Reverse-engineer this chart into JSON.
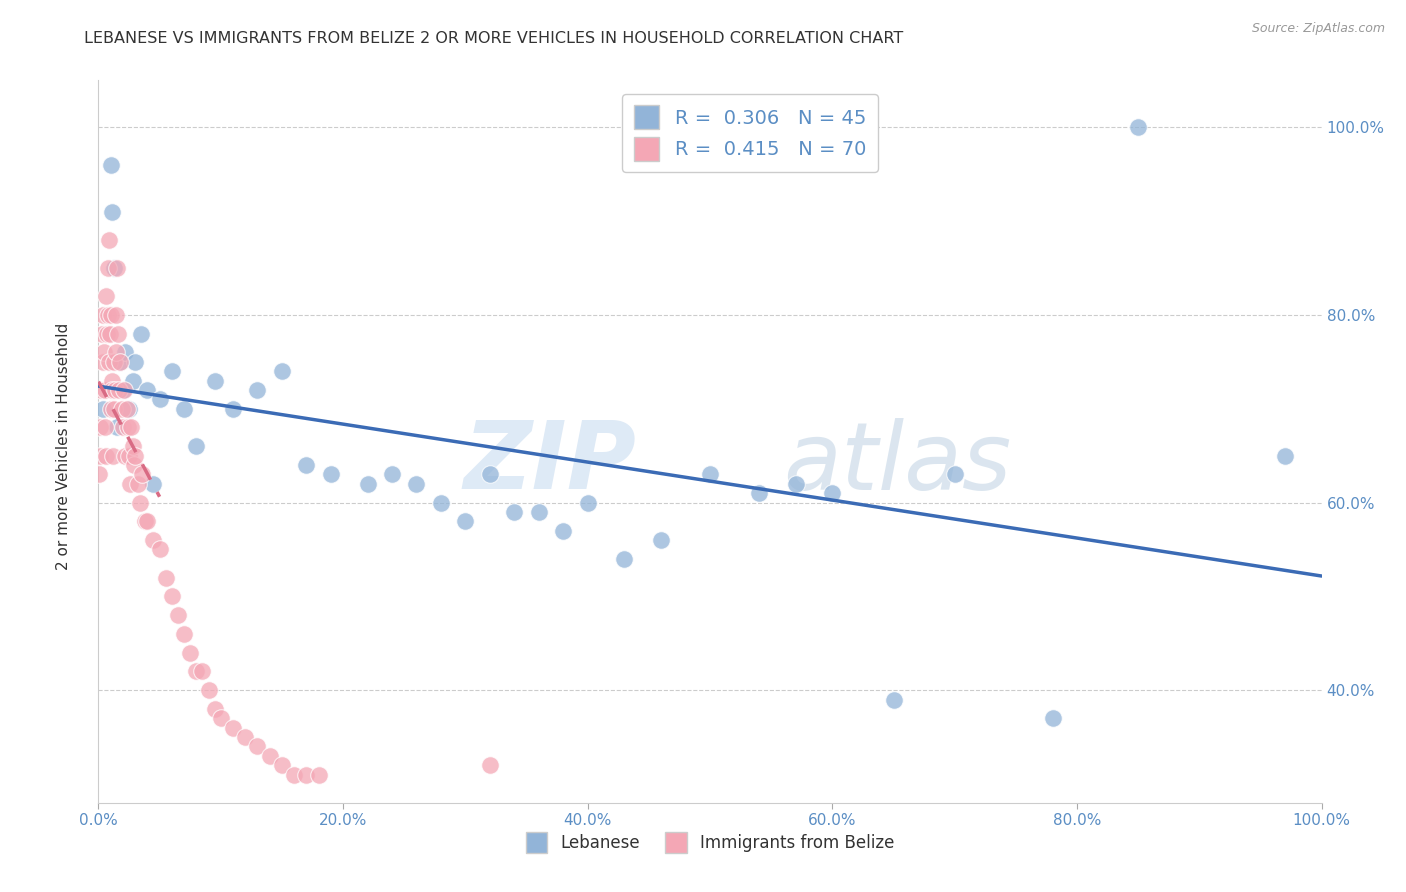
{
  "title": "LEBANESE VS IMMIGRANTS FROM BELIZE 2 OR MORE VEHICLES IN HOUSEHOLD CORRELATION CHART",
  "source": "Source: ZipAtlas.com",
  "ylabel": "2 or more Vehicles in Household",
  "x_tick_positions": [
    0,
    20,
    40,
    60,
    80,
    100
  ],
  "x_tick_labels": [
    "0.0%",
    "20.0%",
    "40.0%",
    "60.0%",
    "80.0%",
    "100.0%"
  ],
  "y_tick_positions": [
    40,
    60,
    80,
    100
  ],
  "y_tick_labels": [
    "40.0%",
    "60.0%",
    "80.0%",
    "100.0%"
  ],
  "legend1_label": "Lebanese",
  "legend2_label": "Immigrants from Belize",
  "legend_r1": "0.306",
  "legend_n1": "45",
  "legend_r2": "0.415",
  "legend_n2": "70",
  "blue_scatter_color": "#92B4D8",
  "pink_scatter_color": "#F4A7B5",
  "blue_line_color": "#3B6BB5",
  "pink_line_color": "#D96B84",
  "tick_color": "#5B8EC4",
  "title_color": "#333333",
  "grid_color": "#CCCCCC",
  "bg_color": "#FFFFFF",
  "watermark_zip_color": "#C8DCF0",
  "watermark_atlas_color": "#B8CDE0",
  "blue_x": [
    0.4,
    1.0,
    1.1,
    1.3,
    1.5,
    1.8,
    2.0,
    2.2,
    2.5,
    2.8,
    3.0,
    3.5,
    4.0,
    4.5,
    5.0,
    6.0,
    7.0,
    8.0,
    9.5,
    11.0,
    13.0,
    15.0,
    17.0,
    19.0,
    22.0,
    24.0,
    26.0,
    28.0,
    30.0,
    32.0,
    34.0,
    36.0,
    38.0,
    40.0,
    43.0,
    46.0,
    50.0,
    54.0,
    57.0,
    60.0,
    65.0,
    70.0,
    78.0,
    85.0,
    97.0
  ],
  "blue_y": [
    70.0,
    96.0,
    91.0,
    85.0,
    68.0,
    75.0,
    72.0,
    76.0,
    70.0,
    73.0,
    75.0,
    78.0,
    72.0,
    62.0,
    71.0,
    74.0,
    70.0,
    66.0,
    73.0,
    70.0,
    72.0,
    74.0,
    64.0,
    63.0,
    62.0,
    63.0,
    62.0,
    60.0,
    58.0,
    63.0,
    59.0,
    59.0,
    57.0,
    60.0,
    54.0,
    56.0,
    63.0,
    61.0,
    62.0,
    61.0,
    39.0,
    63.0,
    37.0,
    100.0,
    65.0
  ],
  "pink_x": [
    0.05,
    0.1,
    0.15,
    0.2,
    0.3,
    0.35,
    0.4,
    0.45,
    0.5,
    0.55,
    0.6,
    0.65,
    0.7,
    0.75,
    0.8,
    0.85,
    0.9,
    0.95,
    1.0,
    1.05,
    1.1,
    1.15,
    1.2,
    1.25,
    1.3,
    1.35,
    1.4,
    1.45,
    1.5,
    1.6,
    1.7,
    1.8,
    1.9,
    2.0,
    2.1,
    2.2,
    2.3,
    2.4,
    2.5,
    2.6,
    2.7,
    2.8,
    2.9,
    3.0,
    3.2,
    3.4,
    3.6,
    3.8,
    4.0,
    4.5,
    5.0,
    5.5,
    6.0,
    6.5,
    7.0,
    7.5,
    8.0,
    8.5,
    9.0,
    9.5,
    10.0,
    11.0,
    12.0,
    13.0,
    14.0,
    15.0,
    16.0,
    17.0,
    18.0,
    32.0
  ],
  "pink_y": [
    63.0,
    68.0,
    65.0,
    72.0,
    78.0,
    75.0,
    80.0,
    76.0,
    68.0,
    72.0,
    65.0,
    82.0,
    78.0,
    80.0,
    85.0,
    88.0,
    75.0,
    78.0,
    80.0,
    70.0,
    73.0,
    72.0,
    65.0,
    75.0,
    70.0,
    72.0,
    76.0,
    80.0,
    85.0,
    78.0,
    72.0,
    75.0,
    70.0,
    68.0,
    72.0,
    65.0,
    70.0,
    68.0,
    65.0,
    62.0,
    68.0,
    66.0,
    64.0,
    65.0,
    62.0,
    60.0,
    63.0,
    58.0,
    58.0,
    56.0,
    55.0,
    52.0,
    50.0,
    48.0,
    46.0,
    44.0,
    42.0,
    42.0,
    40.0,
    38.0,
    37.0,
    36.0,
    35.0,
    34.0,
    33.0,
    32.0,
    31.0,
    31.0,
    31.0,
    32.0
  ],
  "xlim": [
    0,
    100
  ],
  "ylim": [
    28,
    105
  ]
}
